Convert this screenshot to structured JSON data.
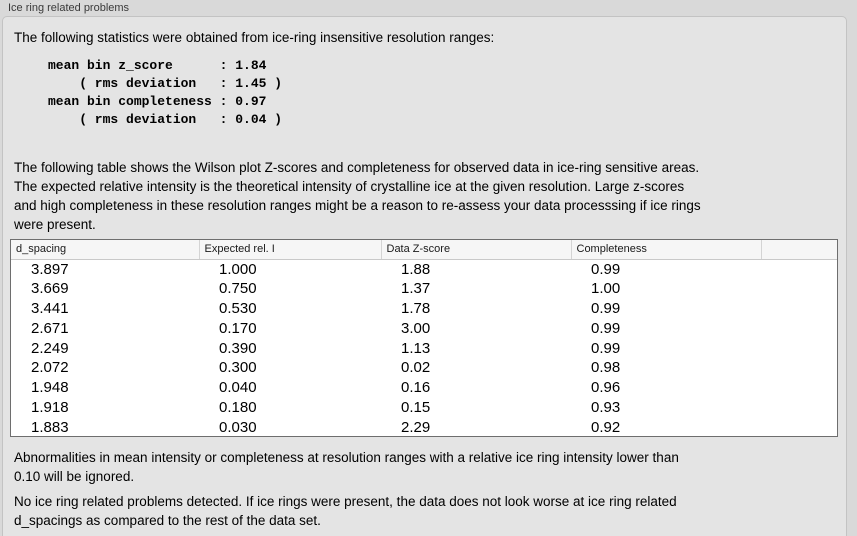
{
  "group_box": {
    "label": "Ice ring related problems",
    "intro": "The following statistics were obtained from ice-ring insensitive resolution ranges:",
    "stats_lines": [
      "mean bin z_score      : 1.84",
      "    ( rms deviation   : 1.45 )",
      "mean bin completeness : 0.97",
      "    ( rms deviation   : 0.04 )"
    ],
    "description_lines": [
      "The following table shows the Wilson plot Z-scores and completeness for observed data in ice-ring sensitive areas.",
      "The expected relative intensity is the theoretical intensity of crystalline ice at the given resolution. Large z-scores",
      "and high completeness in these resolution ranges might be a reason to re-assess your data processsing if ice rings",
      "were present."
    ],
    "table": {
      "columns": [
        "d_spacing",
        "Expected rel. I",
        "Data Z-score",
        "Completeness"
      ],
      "rows": [
        [
          "3.897",
          "1.000",
          "1.88",
          "0.99"
        ],
        [
          "3.669",
          "0.750",
          "1.37",
          "1.00"
        ],
        [
          "3.441",
          "0.530",
          "1.78",
          "0.99"
        ],
        [
          "2.671",
          "0.170",
          "3.00",
          "0.99"
        ],
        [
          "2.249",
          "0.390",
          "1.13",
          "0.99"
        ],
        [
          "2.072",
          "0.300",
          "0.02",
          "0.98"
        ],
        [
          "1.948",
          "0.040",
          "0.16",
          "0.96"
        ],
        [
          "1.918",
          "0.180",
          "0.15",
          "0.93"
        ],
        [
          "1.883",
          "0.030",
          "2.29",
          "0.92"
        ]
      ]
    },
    "ignore_note_lines": [
      "Abnormalities in mean intensity or completeness at resolution ranges with a relative ice ring intensity lower than",
      "0.10 will be ignored."
    ],
    "conclusion_lines": [
      "No ice ring related problems detected. If ice rings were present, the data does not look worse at ice ring related",
      "d_spacings as compared to the rest of the data set."
    ]
  }
}
